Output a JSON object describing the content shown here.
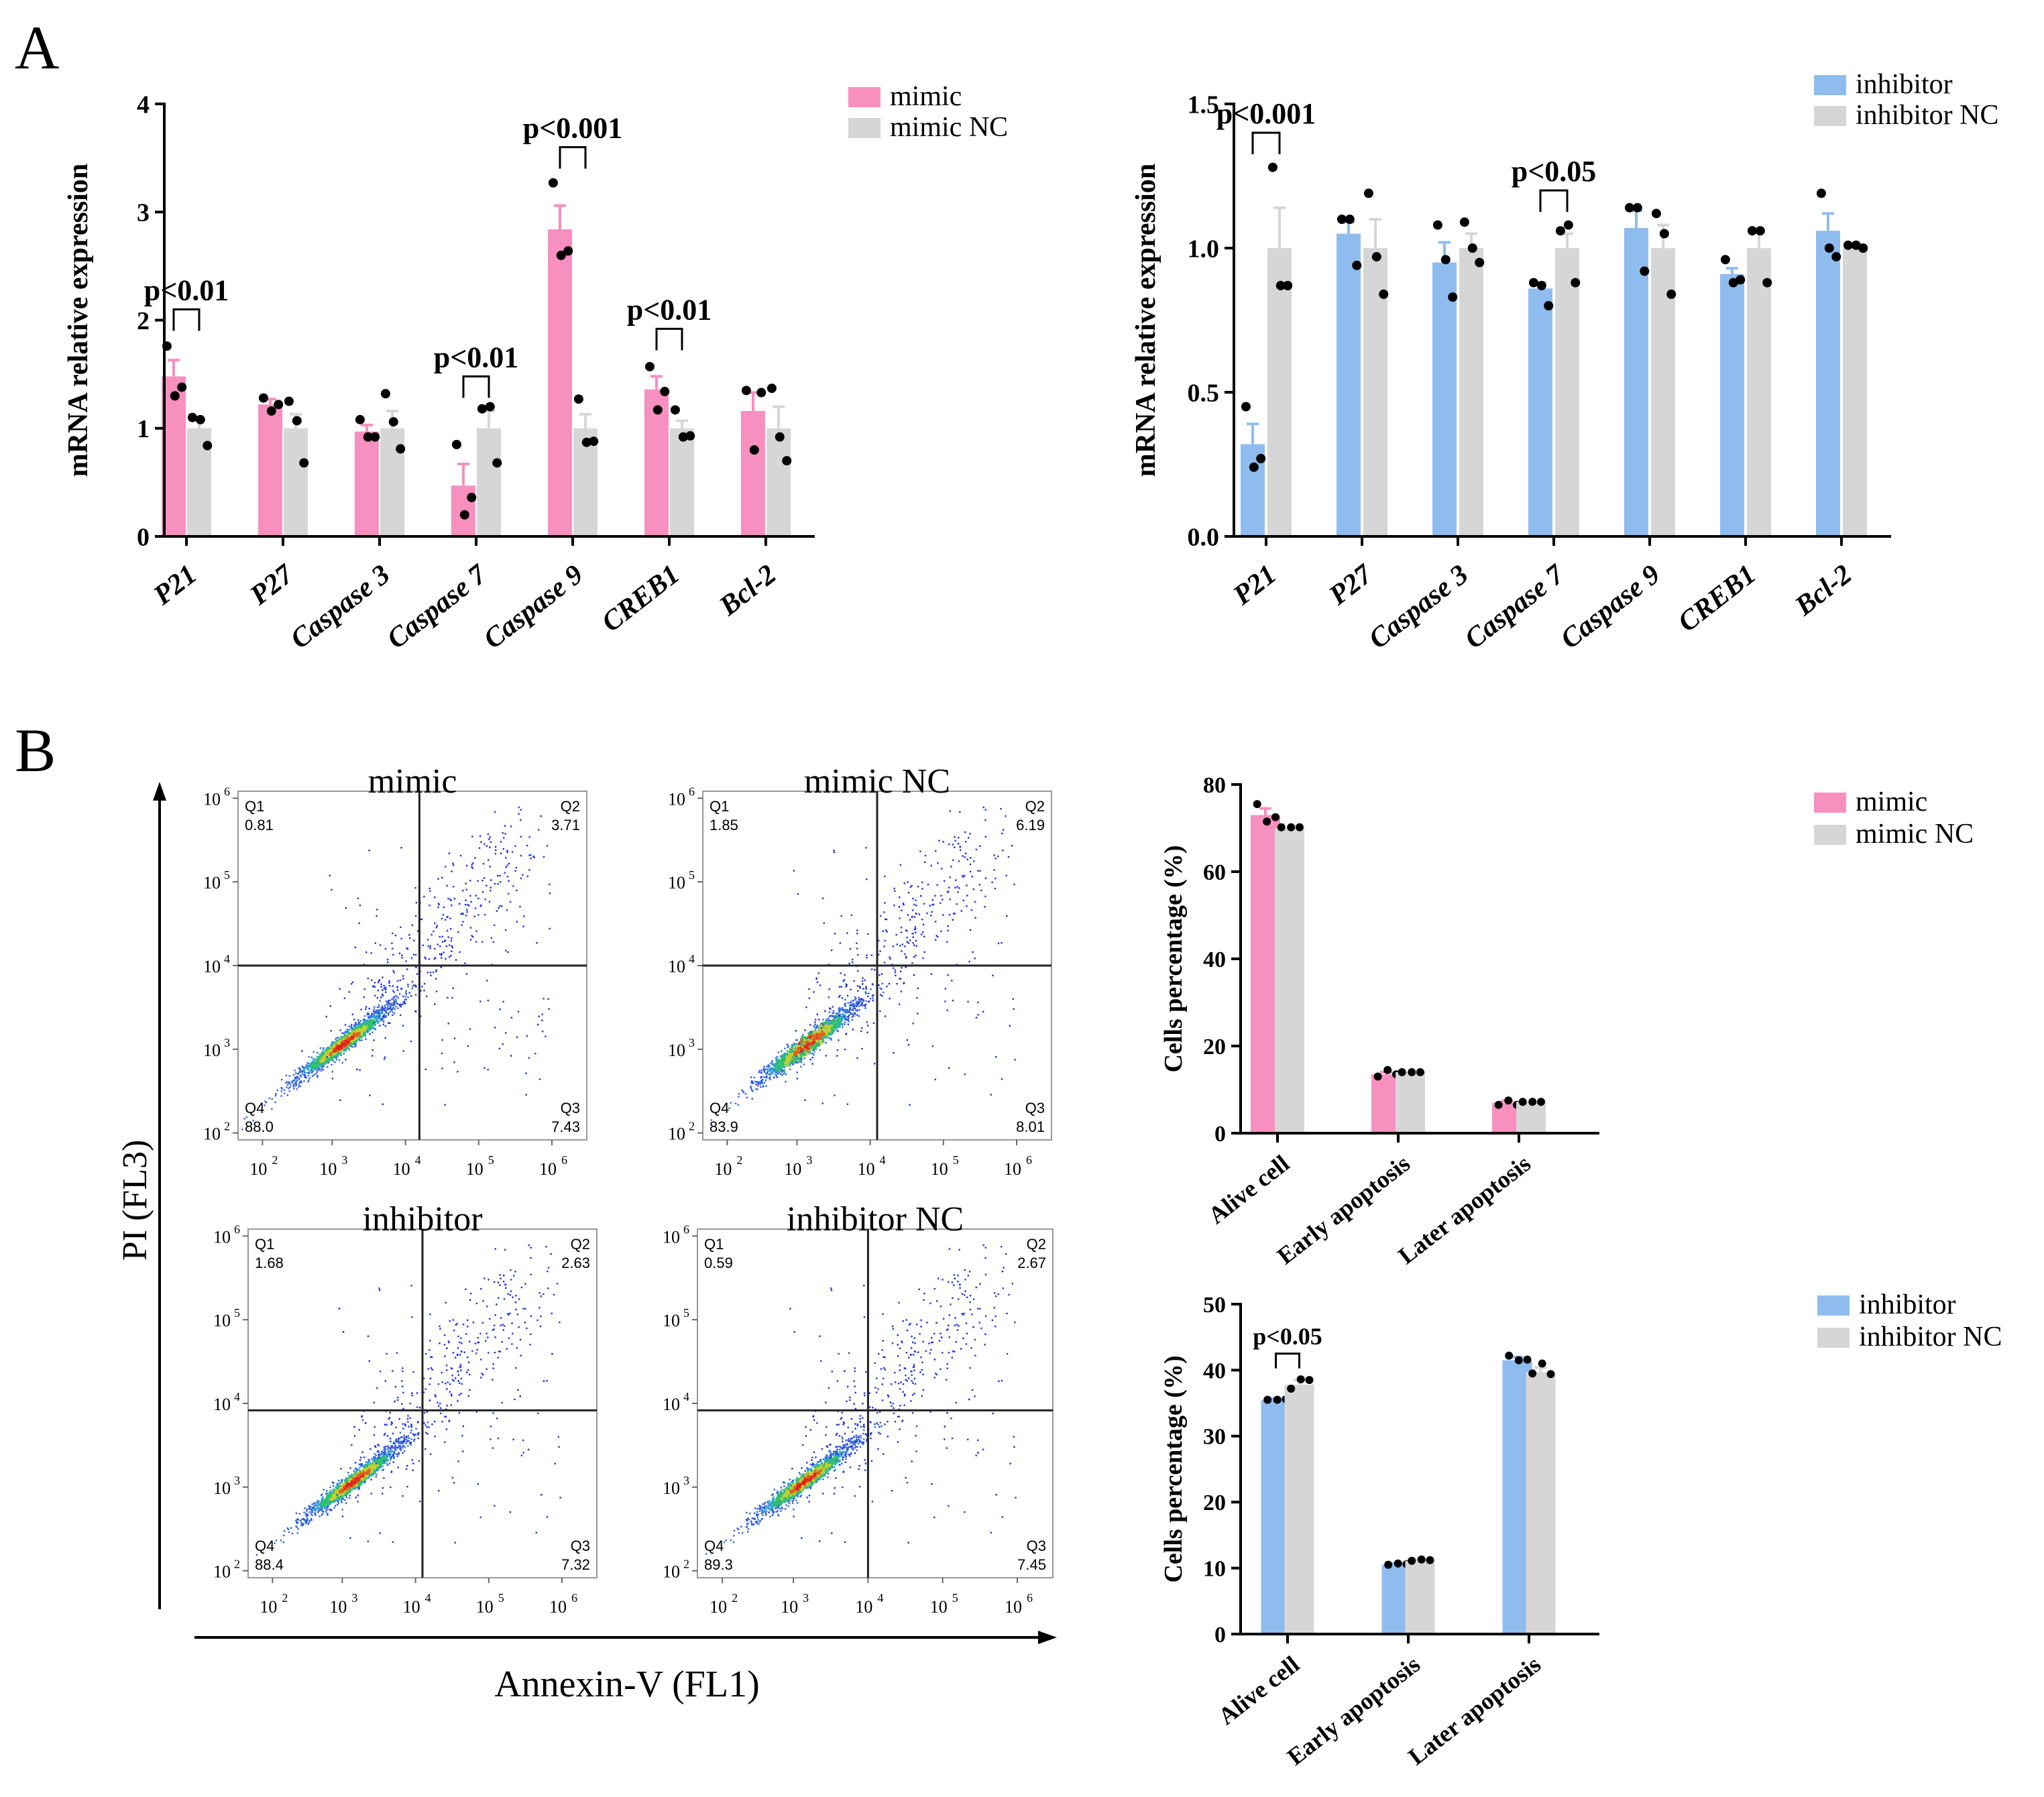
{
  "panels": {
    "a": "A",
    "b": "B"
  },
  "colors": {
    "mimic": "#f78fbf",
    "inhibitor": "#8fbcef",
    "control": "#d6d6d6",
    "dot": "#000000",
    "axis": "#000000"
  },
  "genes": [
    "P21",
    "P27",
    "Caspase 3",
    "Caspase 7",
    "Caspase 9",
    "CREB1",
    "Bcl-2"
  ],
  "flow": {
    "plots": [
      {
        "title": "mimic",
        "q1_label": "Q1",
        "q1": "0.81",
        "q2_label": "Q2",
        "q2": "3.71",
        "q3_label": "Q3",
        "q3": "7.43",
        "q4_label": "Q4",
        "q4": "88.0"
      },
      {
        "title": "mimic  NC",
        "q1_label": "Q1",
        "q1": "1.85",
        "q2_label": "Q2",
        "q2": "6.19",
        "q3_label": "Q3",
        "q3": "8.01",
        "q4_label": "Q4",
        "q4": "83.9"
      },
      {
        "title": "inhibitor",
        "q1_label": "Q1",
        "q1": "1.68",
        "q2_label": "Q2",
        "q2": "2.63",
        "q3_label": "Q3",
        "q3": "7.32",
        "q4_label": "Q4",
        "q4": "88.4"
      },
      {
        "title": "inhibitor NC",
        "q1_label": "Q1",
        "q1": "0.59",
        "q2_label": "Q2",
        "q2": "2.67",
        "q3_label": "Q3",
        "q3": "7.45",
        "q4_label": "Q4",
        "q4": "89.3"
      }
    ],
    "x_title": "Annexin-V (FL1)",
    "y_title": "PI (FL3)",
    "tick_base": "10",
    "exps": [
      "2",
      "3",
      "4",
      "5",
      "6"
    ]
  },
  "chart_data": [
    {
      "id": "mimic_mrna",
      "type": "bar",
      "ylabel": "mRNA relative expression",
      "ylim": [
        0,
        4
      ],
      "yticks": [
        "0",
        "1",
        "2",
        "3",
        "4"
      ],
      "categories": [
        "P21",
        "P27",
        "Caspase 3",
        "Caspase 7",
        "Caspase 9",
        "CREB1",
        "Bcl-2"
      ],
      "series": [
        {
          "name": "mimic",
          "values": [
            1.48,
            1.22,
            0.97,
            0.47,
            2.84,
            1.36,
            1.16
          ],
          "errors": [
            0.15,
            0.05,
            0.06,
            0.2,
            0.22,
            0.12,
            0.17
          ],
          "points": [
            [
              1.76,
              1.3,
              1.38
            ],
            [
              1.28,
              1.16,
              1.22
            ],
            [
              1.08,
              0.92,
              0.92
            ],
            [
              0.85,
              0.2,
              0.36
            ],
            [
              3.27,
              2.6,
              2.64
            ],
            [
              1.57,
              1.17,
              1.34
            ],
            [
              1.35,
              0.8,
              1.33
            ]
          ]
        },
        {
          "name": "mimic NC",
          "values": [
            1.0,
            1.0,
            1.0,
            1.0,
            1.0,
            1.0,
            1.0
          ],
          "errors": [
            0.08,
            0.13,
            0.16,
            0.16,
            0.13,
            0.07,
            0.2
          ],
          "points": [
            [
              1.1,
              1.08,
              0.84
            ],
            [
              1.25,
              1.07,
              0.68
            ],
            [
              1.32,
              1.06,
              0.81
            ],
            [
              1.18,
              1.2,
              0.68
            ],
            [
              1.27,
              0.87,
              0.88
            ],
            [
              1.17,
              0.92,
              0.93
            ],
            [
              1.37,
              0.92,
              0.7
            ]
          ]
        }
      ],
      "annotations": [
        {
          "text": "p<0.01",
          "categories": [
            0,
            0
          ],
          "y": 2.1
        },
        {
          "text": "p<0.01",
          "categories": [
            3,
            3
          ],
          "y": 1.48
        },
        {
          "text": "p<0.001",
          "categories": [
            4,
            4
          ],
          "y": 3.6
        },
        {
          "text": "p<0.01",
          "categories": [
            5,
            5
          ],
          "y": 1.92
        }
      ],
      "legend": {
        "position": "top-right",
        "labels": [
          "mimic",
          "mimic NC"
        ]
      }
    },
    {
      "id": "inhibitor_mrna",
      "type": "bar",
      "ylabel": "mRNA relative expression",
      "ylim": [
        0,
        1.5
      ],
      "yticks": [
        "0.0",
        "0.5",
        "1.0",
        "1.5"
      ],
      "categories": [
        "P21",
        "P27",
        "Caspase 3",
        "Caspase 7",
        "Caspase 9",
        "CREB1",
        "Bcl-2"
      ],
      "series": [
        {
          "name": "inhibitor",
          "values": [
            0.32,
            1.05,
            0.95,
            0.86,
            1.07,
            0.91,
            1.06
          ],
          "errors": [
            0.07,
            0.04,
            0.07,
            0.02,
            0.06,
            0.02,
            0.06
          ],
          "points": [
            [
              0.45,
              0.24,
              0.27
            ],
            [
              1.1,
              1.1,
              0.94
            ],
            [
              1.08,
              0.96,
              0.83
            ],
            [
              0.88,
              0.87,
              0.8
            ],
            [
              1.14,
              1.14,
              0.92
            ],
            [
              0.96,
              0.88,
              0.89
            ],
            [
              1.19,
              1.0,
              0.97
            ]
          ]
        },
        {
          "name": "inhibitor NC",
          "values": [
            1.0,
            1.0,
            1.0,
            1.0,
            1.0,
            1.0,
            1.0
          ],
          "errors": [
            0.14,
            0.1,
            0.05,
            0.05,
            0.08,
            0.06,
            0.01
          ],
          "points": [
            [
              1.28,
              0.87,
              0.87
            ],
            [
              1.19,
              0.97,
              0.84
            ],
            [
              1.09,
              1.0,
              0.95
            ],
            [
              1.06,
              1.08,
              0.88
            ],
            [
              1.12,
              1.05,
              0.84
            ],
            [
              1.06,
              1.06,
              0.88
            ],
            [
              1.01,
              1.01,
              1.0
            ]
          ]
        }
      ],
      "annotations": [
        {
          "text": "p<0.001",
          "categories": [
            0,
            0
          ],
          "y": 1.4
        },
        {
          "text": "p<0.05",
          "categories": [
            3,
            3
          ],
          "y": 1.2
        }
      ],
      "legend": {
        "position": "top-right",
        "labels": [
          "inhibitor",
          "inhibitor NC"
        ]
      }
    },
    {
      "id": "mimic_apoptosis",
      "type": "bar",
      "ylabel": "Cells percentage (%)",
      "ylim": [
        0,
        80
      ],
      "yticks": [
        "0",
        "20",
        "40",
        "60",
        "80"
      ],
      "categories": [
        "Alive cell",
        "Early apoptosis",
        "Later apoptosis"
      ],
      "series": [
        {
          "name": "mimic",
          "values": [
            73,
            13.5,
            7
          ],
          "errors": [
            1.5,
            0.5,
            0.4
          ],
          "points": [
            [
              75.5,
              71.5,
              72.5
            ],
            [
              13,
              14.5,
              13.5
            ],
            [
              6.5,
              7.5,
              6.5
            ]
          ]
        },
        {
          "name": "mimic NC",
          "values": [
            70,
            14,
            7.2
          ],
          "errors": [
            0,
            0,
            0
          ],
          "points": [
            [
              70.2,
              70.2,
              70.2
            ],
            [
              14,
              14,
              14
            ],
            [
              7.2,
              7.2,
              7.2
            ]
          ]
        }
      ],
      "annotations": [],
      "legend": {
        "position": "top-right",
        "labels": [
          "mimic",
          "mimic NC"
        ]
      }
    },
    {
      "id": "inhibitor_apoptosis",
      "type": "bar",
      "ylabel": "Cells percentage (%)",
      "ylim": [
        0,
        50
      ],
      "yticks": [
        "0",
        "10",
        "20",
        "30",
        "40",
        "50"
      ],
      "categories": [
        "Alive cell",
        "Early apoptosis",
        "Later apoptosis"
      ],
      "series": [
        {
          "name": "inhibitor",
          "values": [
            35.5,
            10.5,
            41.5
          ],
          "errors": [
            0.2,
            0.2,
            0.5
          ],
          "points": [
            [
              35.5,
              35.5,
              35.6
            ],
            [
              10.5,
              10.7,
              10.6
            ],
            [
              42.2,
              41.5,
              41.6
            ]
          ]
        },
        {
          "name": "inhibitor NC",
          "values": [
            37.8,
            11.1,
            39.7
          ],
          "errors": [
            0.7,
            0.2,
            0.7
          ],
          "points": [
            [
              37.2,
              38.6,
              38.5
            ],
            [
              11.1,
              11.3,
              11.2
            ],
            [
              39.5,
              41.0,
              39.4
            ]
          ]
        }
      ],
      "annotations": [
        {
          "text": "p<0.05",
          "categories": [
            0,
            0
          ],
          "y": 42.5
        }
      ],
      "legend": {
        "position": "top-right",
        "labels": [
          "inhibitor",
          "inhibitor NC"
        ]
      }
    }
  ]
}
